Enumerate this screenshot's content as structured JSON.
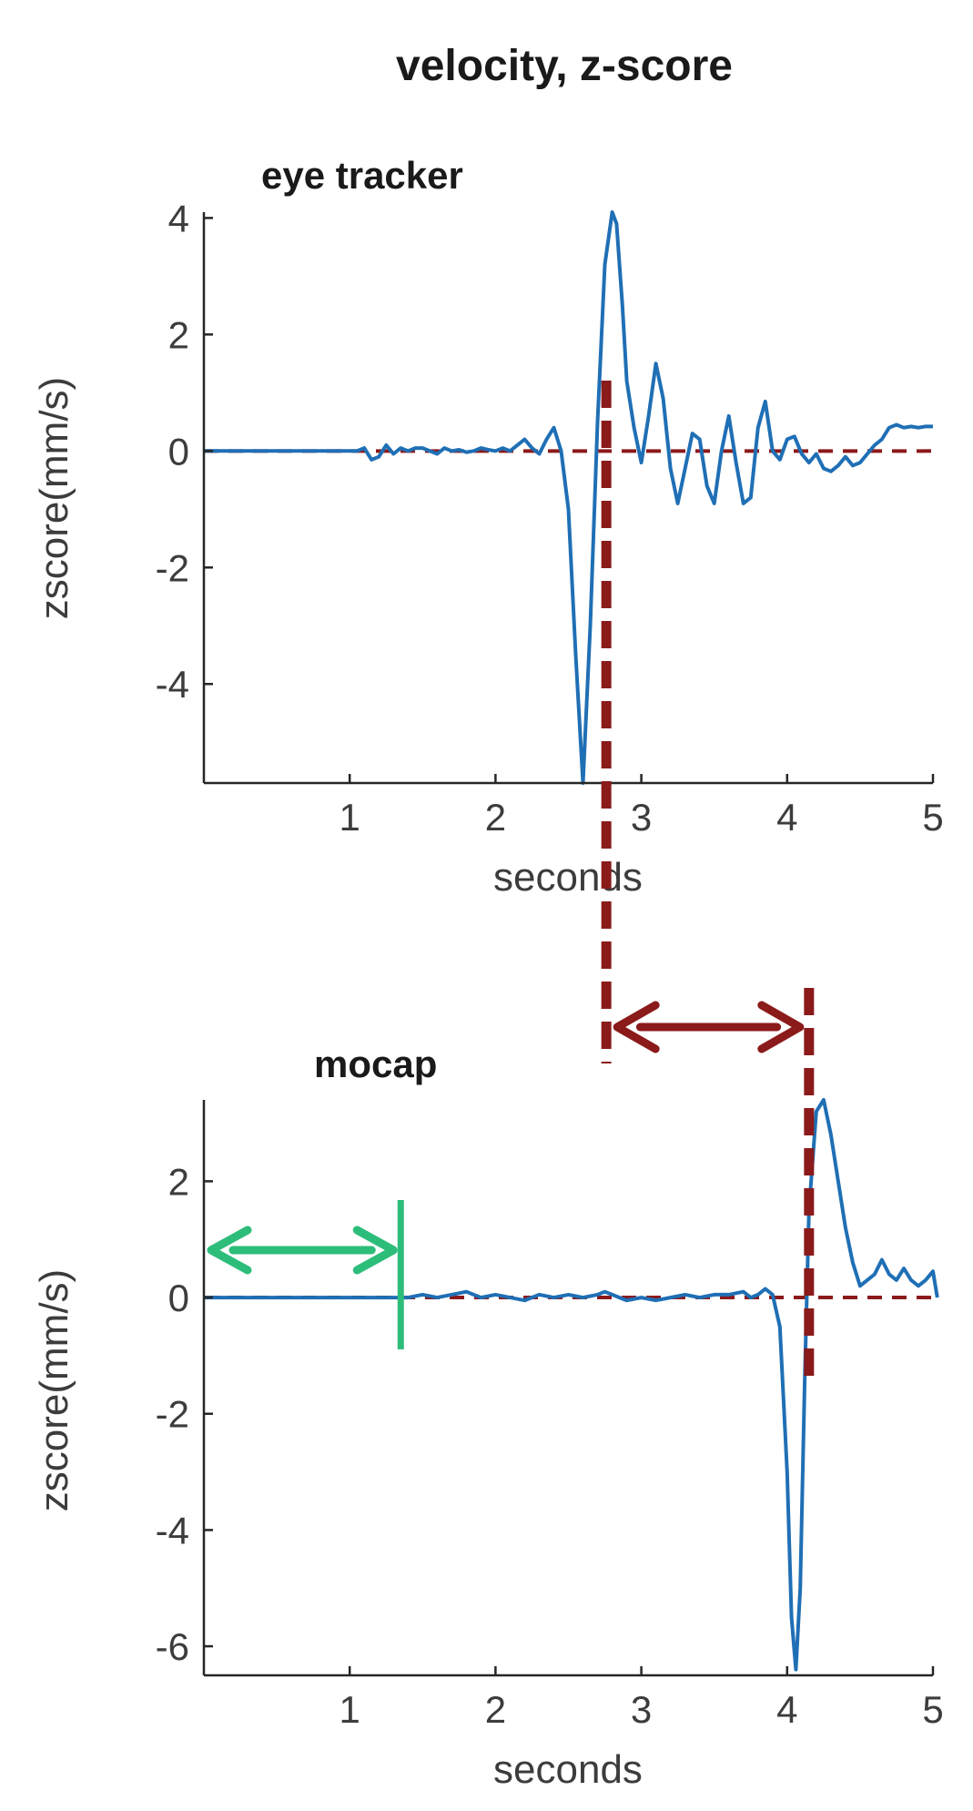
{
  "figure_title": "velocity, z-score",
  "colors": {
    "trace": "#1f6fb5",
    "reference": "#8b1a1a",
    "offset_marker": "#2dbd7a",
    "axis": "#262626"
  },
  "chart_data": [
    {
      "type": "line",
      "title": "eye tracker",
      "xlabel": "seconds",
      "ylabel": "zscore(mm/s)",
      "xlim": [
        0,
        5
      ],
      "ylim": [
        -5.7,
        4.1
      ],
      "xticks": [
        "1",
        "2",
        "3",
        "4",
        "5"
      ],
      "yticks": [
        "4",
        "2",
        "0",
        "-2",
        "-4"
      ],
      "grid": false,
      "zero_line": 0,
      "event_time": 2.76,
      "series": [
        {
          "x": [
            0,
            0.5,
            1.0,
            1.05,
            1.1,
            1.15,
            1.2,
            1.25,
            1.3,
            1.35,
            1.4,
            1.45,
            1.5,
            1.55,
            1.6,
            1.65,
            1.7,
            1.75,
            1.8,
            1.85,
            1.9,
            1.95,
            2.0,
            2.05,
            2.1,
            2.15,
            2.2,
            2.25,
            2.3,
            2.35,
            2.4,
            2.45,
            2.5,
            2.55,
            2.6,
            2.65,
            2.7,
            2.75,
            2.8,
            2.83,
            2.87,
            2.9,
            2.95,
            3.0,
            3.05,
            3.1,
            3.15,
            3.2,
            3.25,
            3.3,
            3.35,
            3.4,
            3.45,
            3.5,
            3.55,
            3.6,
            3.65,
            3.7,
            3.75,
            3.8,
            3.85,
            3.9,
            3.95,
            4.0,
            4.05,
            4.1,
            4.15,
            4.2,
            4.25,
            4.3,
            4.35,
            4.4,
            4.45,
            4.5,
            4.55,
            4.6,
            4.65,
            4.7,
            4.75,
            4.8,
            4.85,
            4.9,
            4.95,
            5.0
          ],
          "y": [
            0,
            0,
            0,
            0.0,
            0.05,
            -0.15,
            -0.1,
            0.1,
            -0.05,
            0.05,
            0.0,
            0.05,
            0.05,
            0.0,
            -0.05,
            0.05,
            0.0,
            0.02,
            -0.02,
            0.0,
            0.05,
            0.02,
            0.0,
            0.05,
            0.0,
            0.1,
            0.2,
            0.05,
            -0.05,
            0.2,
            0.4,
            0.0,
            -1.0,
            -3.5,
            -5.7,
            -3.0,
            0.5,
            3.2,
            4.1,
            3.9,
            2.5,
            1.2,
            0.4,
            -0.2,
            0.6,
            1.5,
            0.9,
            -0.3,
            -0.9,
            -0.3,
            0.3,
            0.2,
            -0.6,
            -0.9,
            0.0,
            0.6,
            -0.2,
            -0.9,
            -0.8,
            0.4,
            0.85,
            0.0,
            -0.15,
            0.2,
            0.25,
            -0.05,
            -0.2,
            -0.05,
            -0.3,
            -0.35,
            -0.25,
            -0.1,
            -0.25,
            -0.2,
            -0.05,
            0.1,
            0.2,
            0.4,
            0.45,
            0.4,
            0.42,
            0.4,
            0.42,
            0.42
          ]
        }
      ]
    },
    {
      "type": "line",
      "title": "mocap",
      "xlabel": "seconds",
      "ylabel": "zscore(mm/s)",
      "xlim": [
        0,
        5
      ],
      "ylim": [
        -6.5,
        3.4
      ],
      "xticks": [
        "1",
        "2",
        "3",
        "4",
        "5"
      ],
      "yticks": [
        "2",
        "0",
        "-2",
        "-4",
        "-6"
      ],
      "grid": false,
      "zero_line": 0,
      "event_time": 4.15,
      "offset_time": 1.35,
      "series": [
        {
          "x": [
            0,
            0.5,
            1.0,
            1.4,
            1.5,
            1.6,
            1.7,
            1.8,
            1.9,
            2.0,
            2.1,
            2.2,
            2.3,
            2.4,
            2.5,
            2.6,
            2.7,
            2.75,
            2.8,
            2.85,
            2.9,
            3.0,
            3.1,
            3.2,
            3.3,
            3.4,
            3.5,
            3.6,
            3.7,
            3.75,
            3.8,
            3.85,
            3.9,
            3.95,
            4.0,
            4.03,
            4.06,
            4.09,
            4.12,
            4.15,
            4.2,
            4.25,
            4.3,
            4.35,
            4.4,
            4.45,
            4.5,
            4.55,
            4.6,
            4.65,
            4.7,
            4.75,
            4.8,
            4.85,
            4.9,
            4.95,
            5.0,
            5.03
          ],
          "y": [
            0,
            0,
            0,
            0.0,
            0.05,
            0.0,
            0.05,
            0.1,
            0.0,
            0.05,
            0.0,
            -0.05,
            0.05,
            0.0,
            0.05,
            0.0,
            0.05,
            0.1,
            0.05,
            0.0,
            -0.05,
            0.0,
            -0.05,
            0.0,
            0.05,
            0.0,
            0.05,
            0.05,
            0.1,
            0.0,
            0.05,
            0.15,
            0.05,
            -0.5,
            -3.0,
            -5.5,
            -6.4,
            -5.0,
            -1.5,
            1.5,
            3.2,
            3.4,
            2.8,
            2.0,
            1.2,
            0.6,
            0.2,
            0.3,
            0.4,
            0.65,
            0.4,
            0.3,
            0.5,
            0.3,
            0.2,
            0.3,
            0.45,
            0.0
          ]
        }
      ]
    }
  ]
}
